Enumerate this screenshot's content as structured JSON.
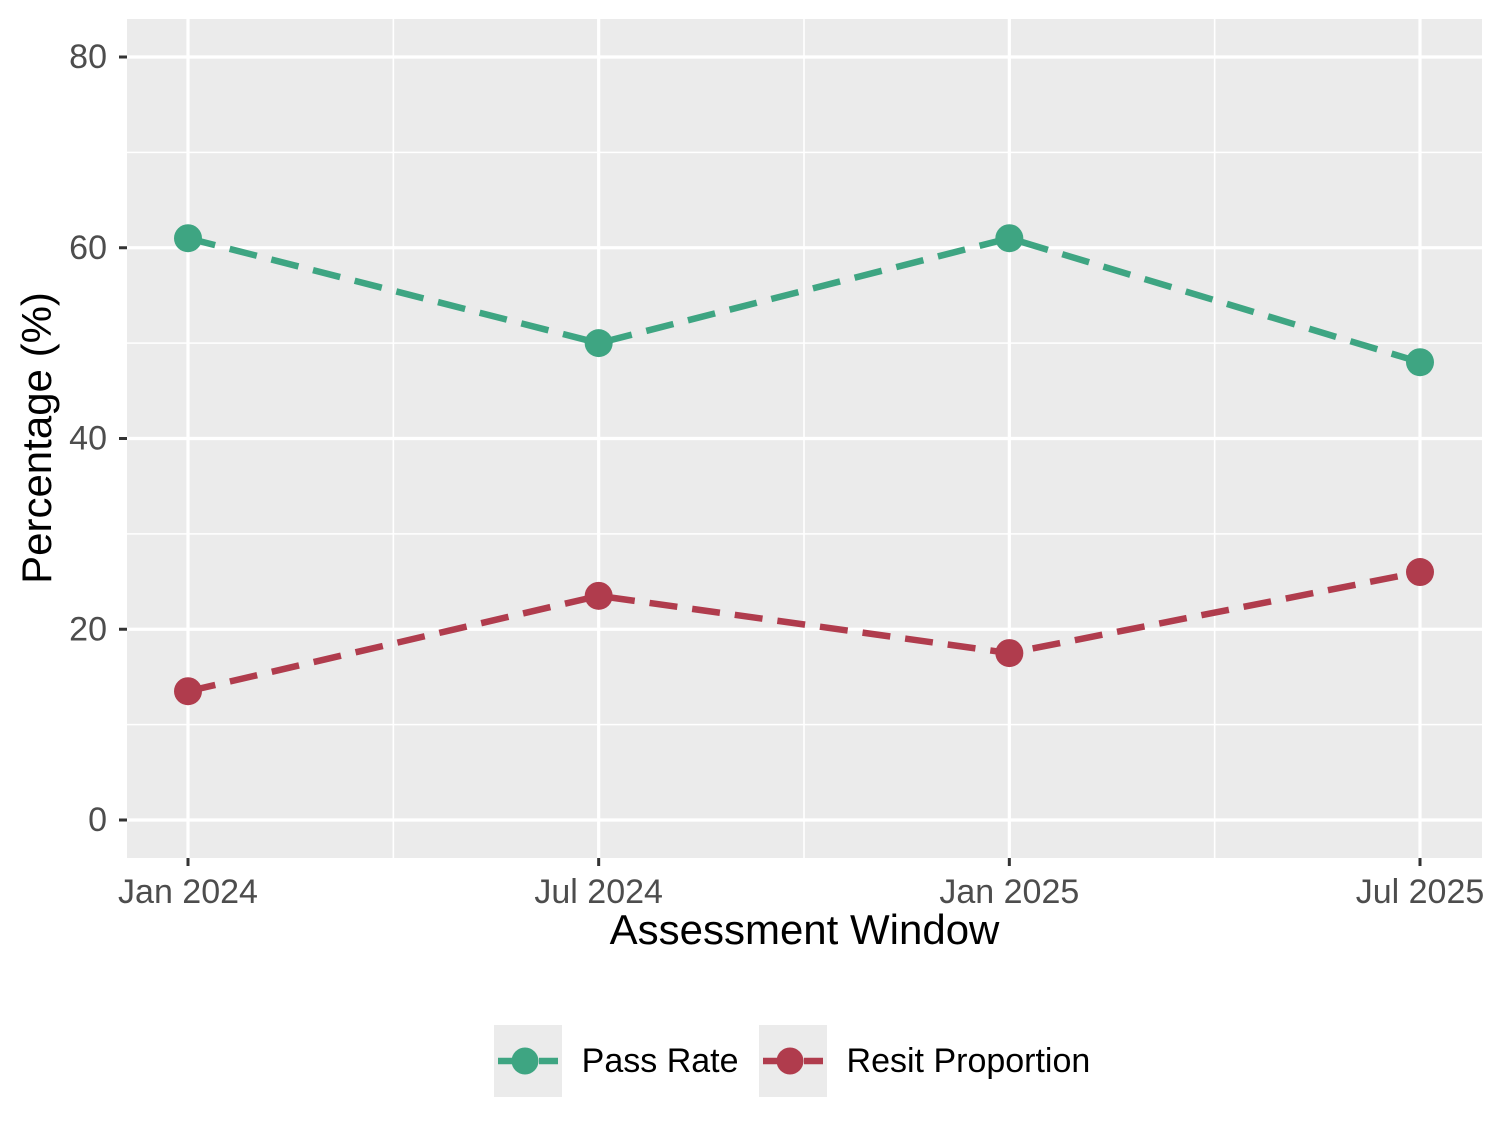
{
  "chart_data": {
    "type": "line",
    "title": "",
    "xlabel": "Assessment Window",
    "ylabel": "Percentage (%)",
    "categories": [
      "Jan 2024",
      "Jul 2024",
      "Jan 2025",
      "Jul 2025"
    ],
    "series": [
      {
        "name": "Pass Rate",
        "color": "#3EA582",
        "linetype": "dashed",
        "marker": "circle",
        "values": [
          61,
          50,
          61,
          48
        ]
      },
      {
        "name": "Resit Proportion",
        "color": "#B03C4D",
        "linetype": "dashed",
        "marker": "circle",
        "values": [
          13.5,
          23.5,
          17.5,
          26
        ]
      }
    ],
    "ylim": [
      0,
      80
    ],
    "yticks": [
      0,
      20,
      40,
      60,
      80
    ],
    "yticks_minor": [
      10,
      30,
      50,
      70
    ],
    "grid": "major-and-minor",
    "legend_position": "bottom",
    "colors": {
      "panel_bg": "#EBEBEB",
      "grid": "#FFFFFF",
      "tick_label": "#4D4D4D",
      "tick_mark": "#333333",
      "axis_title": "#000000",
      "figure_bg": "#FFFFFF"
    }
  }
}
